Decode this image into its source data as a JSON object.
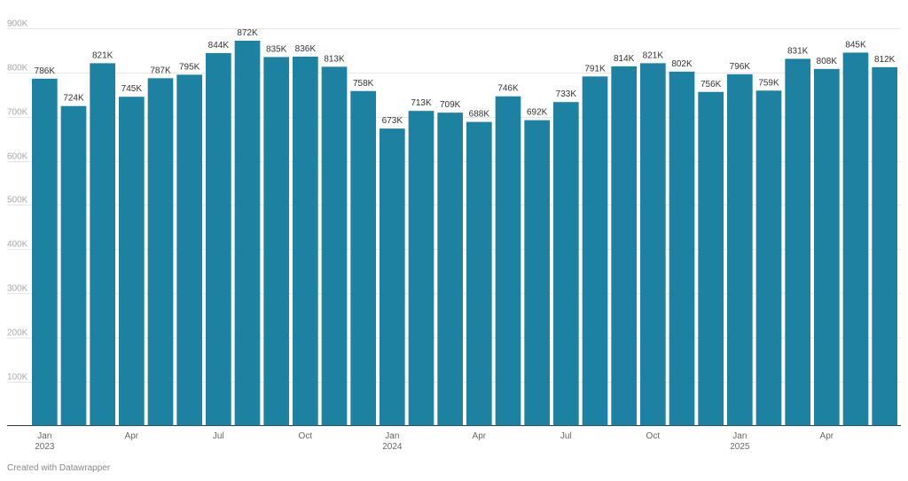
{
  "chart_data": {
    "type": "bar",
    "title": "",
    "xlabel": "",
    "ylabel": "",
    "ylim": [
      0,
      900000
    ],
    "grid": true,
    "y_ticks": [
      {
        "value": 100000,
        "label": "100K"
      },
      {
        "value": 200000,
        "label": "200K"
      },
      {
        "value": 300000,
        "label": "300K"
      },
      {
        "value": 400000,
        "label": "400K"
      },
      {
        "value": 500000,
        "label": "500K"
      },
      {
        "value": 600000,
        "label": "600K"
      },
      {
        "value": 700000,
        "label": "700K"
      },
      {
        "value": 800000,
        "label": "800K"
      },
      {
        "value": 900000,
        "label": "900K"
      }
    ],
    "categories": [
      "2023-01",
      "2023-02",
      "2023-03",
      "2023-04",
      "2023-05",
      "2023-06",
      "2023-07",
      "2023-08",
      "2023-09",
      "2023-10",
      "2023-11",
      "2023-12",
      "2024-01",
      "2024-02",
      "2024-03",
      "2024-04",
      "2024-05",
      "2024-06",
      "2024-07",
      "2024-08",
      "2024-09",
      "2024-10",
      "2024-11",
      "2024-12",
      "2025-01",
      "2025-02",
      "2025-03",
      "2025-04",
      "2025-05",
      "2025-06"
    ],
    "values": [
      786000,
      724000,
      821000,
      745000,
      787000,
      795000,
      844000,
      872000,
      835000,
      836000,
      813000,
      758000,
      673000,
      713000,
      709000,
      688000,
      746000,
      692000,
      733000,
      791000,
      814000,
      821000,
      802000,
      756000,
      796000,
      759000,
      831000,
      808000,
      845000,
      812000
    ],
    "value_labels": [
      "786K",
      "724K",
      "821K",
      "745K",
      "787K",
      "795K",
      "844K",
      "872K",
      "835K",
      "836K",
      "813K",
      "758K",
      "673K",
      "713K",
      "709K",
      "688K",
      "746K",
      "692K",
      "733K",
      "791K",
      "814K",
      "821K",
      "802K",
      "756K",
      "796K",
      "759K",
      "831K",
      "808K",
      "845K",
      "812K"
    ],
    "x_ticks": [
      {
        "index": 0,
        "label": "Jan",
        "sublabel": "2023"
      },
      {
        "index": 3,
        "label": "Apr"
      },
      {
        "index": 6,
        "label": "Jul"
      },
      {
        "index": 9,
        "label": "Oct"
      },
      {
        "index": 12,
        "label": "Jan",
        "sublabel": "2024"
      },
      {
        "index": 15,
        "label": "Apr"
      },
      {
        "index": 18,
        "label": "Jul"
      },
      {
        "index": 21,
        "label": "Oct"
      },
      {
        "index": 24,
        "label": "Jan",
        "sublabel": "2025"
      },
      {
        "index": 27,
        "label": "Apr"
      }
    ],
    "bar_color": "#1d81a2"
  },
  "footer": {
    "credit": "Created with Datawrapper"
  }
}
